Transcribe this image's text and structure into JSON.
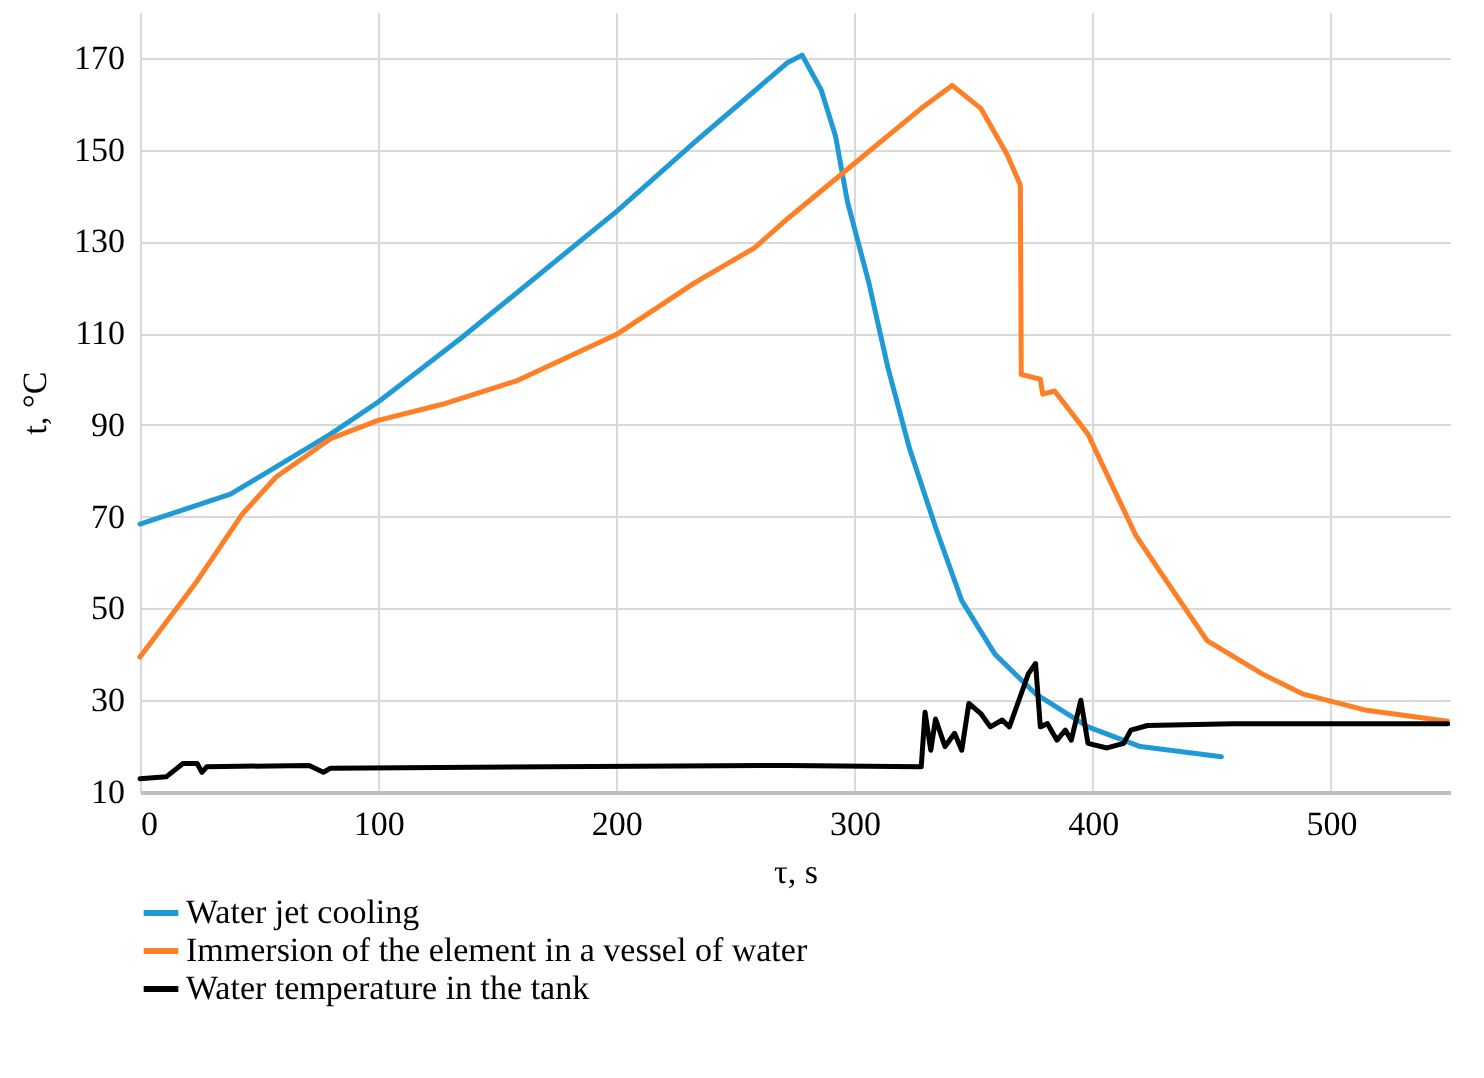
{
  "chart_data": {
    "type": "line",
    "xlabel": "τ, s",
    "ylabel": "t, °C",
    "xlim": [
      0,
      550
    ],
    "xticks": [
      0,
      100,
      200,
      300,
      400,
      500
    ],
    "ylim": [
      10,
      180
    ],
    "yticks": [
      10,
      30,
      50,
      70,
      90,
      110,
      130,
      150,
      170
    ],
    "grid": true,
    "legend": "bottom",
    "marker": "none",
    "line_style": "solid",
    "series": [
      {
        "name": "Water jet cooling",
        "color": "#1f9ad6",
        "x": [
          0,
          38,
          80,
          100,
          135,
          200,
          233,
          272,
          278,
          286,
          292,
          297,
          306,
          314,
          323,
          334,
          345,
          359,
          376,
          398,
          420,
          454
        ],
        "values": [
          68.4,
          74.9,
          88,
          95,
          109,
          136.5,
          151.7,
          169,
          170.6,
          163,
          153,
          138.7,
          121,
          102.5,
          85,
          67.7,
          51.7,
          40,
          31.4,
          24.2,
          19.9,
          17.7
        ]
      },
      {
        "name": "Immersion of the element in a vessel of water",
        "color": "#ff7f27",
        "x": [
          0,
          24,
          43,
          57,
          80,
          100,
          127,
          158,
          200,
          233,
          258,
          272,
          306,
          328,
          341,
          353,
          364,
          369.6,
          370,
          378,
          379,
          384,
          398,
          418,
          429,
          448,
          471,
          488,
          515,
          549
        ],
        "values": [
          39.4,
          56,
          70.6,
          78.6,
          87,
          91,
          94.5,
          99.6,
          109.7,
          121,
          128.6,
          135,
          149.6,
          159,
          164,
          159,
          149,
          142.3,
          101,
          100,
          96.7,
          97.4,
          88,
          66,
          57.5,
          43,
          35.8,
          31.4,
          27.8,
          25.4
        ]
      },
      {
        "name": "Water temperature in the tank",
        "color": "#000000",
        "x": [
          0,
          11,
          18,
          24,
          26,
          28,
          71,
          77,
          80,
          272,
          328,
          329.6,
          332,
          334,
          338,
          342,
          345,
          348,
          353,
          357,
          362,
          365,
          369,
          373,
          376,
          378,
          381,
          385,
          388.5,
          391,
          395,
          398,
          406,
          413,
          416,
          423,
          459,
          549
        ],
        "values": [
          12.9,
          13.3,
          16.2,
          16.2,
          14.3,
          15.5,
          15.8,
          14.3,
          15.2,
          15.8,
          15.5,
          27.4,
          19.1,
          25.9,
          19.9,
          22.8,
          19.1,
          29.3,
          27.1,
          24.2,
          25.7,
          24.2,
          30,
          35.8,
          38,
          24.2,
          24.9,
          21.3,
          23.5,
          21.3,
          30,
          20.6,
          19.6,
          20.6,
          23.5,
          24.5,
          24.9,
          24.9
        ]
      }
    ]
  }
}
